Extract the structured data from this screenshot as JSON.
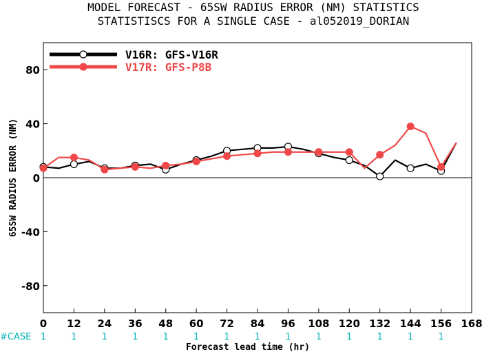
{
  "chart_data": {
    "type": "line",
    "title": "MODEL FORECAST - 65SW RADIUS ERROR (NM) STATISTICS",
    "subtitle": "STATISTISCS FOR A SINGLE CASE - al052019_DORIAN",
    "xlabel": "Forecast lead time (hr)",
    "ylabel": "65SW RADIUS ERROR (NM)",
    "xlim": [
      0,
      168
    ],
    "ylim": [
      -100,
      100
    ],
    "xticks": [
      0,
      12,
      24,
      36,
      48,
      60,
      72,
      84,
      96,
      108,
      120,
      132,
      144,
      156,
      168
    ],
    "yticks": [
      -80,
      -40,
      0,
      40,
      80
    ],
    "grid": false,
    "legend_position": "top-left",
    "case_label": "#CASE",
    "case_x": [
      0,
      12,
      24,
      36,
      48,
      60,
      72,
      84,
      96,
      108,
      120,
      132,
      144,
      156
    ],
    "case_counts": [
      "1",
      "1",
      "1",
      "1",
      "1",
      "1",
      "1",
      "1",
      "1",
      "1",
      "1",
      "1",
      "1",
      "1"
    ],
    "series": [
      {
        "name": "V16R: GFS-V16R",
        "color": "#000000",
        "marker": "open-circle",
        "x": [
          0,
          6,
          12,
          18,
          24,
          30,
          36,
          42,
          48,
          54,
          60,
          66,
          72,
          78,
          84,
          90,
          96,
          102,
          108,
          114,
          120,
          126,
          132,
          138,
          144,
          150,
          156,
          162
        ],
        "y": [
          8,
          7,
          10,
          12,
          7,
          7,
          9,
          10,
          6,
          10,
          13,
          16,
          20,
          21,
          22,
          22,
          23,
          21,
          18,
          15,
          13,
          9,
          1,
          13,
          7,
          10,
          5,
          26
        ],
        "marked_x": [
          0,
          12,
          24,
          36,
          48,
          60,
          72,
          84,
          96,
          108,
          120,
          132,
          144,
          156
        ]
      },
      {
        "name": "V17R: GFS-P8B",
        "color": "#f04848",
        "marker": "filled-circle",
        "x": [
          0,
          6,
          12,
          18,
          24,
          30,
          36,
          42,
          48,
          54,
          60,
          66,
          72,
          78,
          84,
          90,
          96,
          102,
          108,
          114,
          120,
          126,
          132,
          138,
          144,
          150,
          156,
          162
        ],
        "y": [
          7,
          15,
          15,
          13,
          6,
          7,
          8,
          7,
          9,
          10,
          12,
          14,
          16,
          17,
          18,
          19,
          19,
          19,
          19,
          19,
          19,
          7,
          17,
          24,
          38,
          33,
          8,
          26
        ],
        "marked_x": [
          0,
          12,
          24,
          36,
          48,
          60,
          72,
          84,
          96,
          108,
          120,
          132,
          144,
          156
        ]
      }
    ]
  }
}
